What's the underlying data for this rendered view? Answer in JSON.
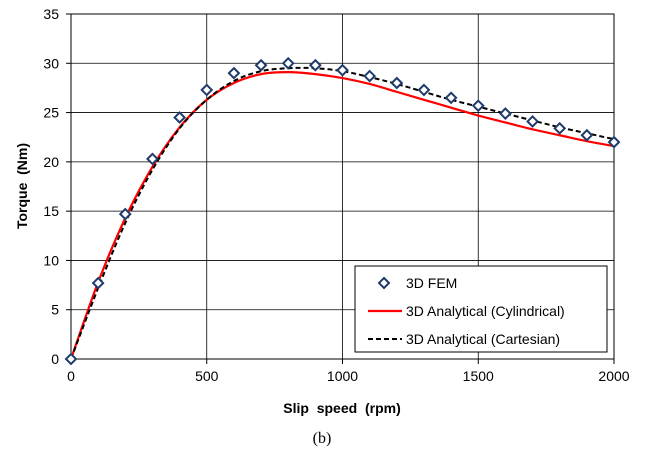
{
  "chart_data": {
    "type": "line",
    "xlabel": "Slip  speed  (rpm)",
    "ylabel": "Torque  (Nm)",
    "caption": "(b)",
    "xlim": [
      0,
      2000
    ],
    "ylim": [
      0,
      35
    ],
    "x_ticks": [
      0,
      500,
      1000,
      1500,
      2000
    ],
    "y_ticks": [
      0,
      5,
      10,
      15,
      20,
      25,
      30,
      35
    ],
    "x_tick_labels": [
      "0",
      "500",
      "1000",
      "1500",
      "2000"
    ],
    "y_tick_labels": [
      "0",
      "5",
      "10",
      "15",
      "20",
      "25",
      "30",
      "35"
    ],
    "grid": true,
    "legend_position": "bottom-right",
    "series": [
      {
        "name": "3D FEM",
        "style": "marker-diamond",
        "color": "#1F3A6B",
        "x": [
          0,
          100,
          200,
          300,
          400,
          500,
          600,
          700,
          800,
          900,
          1000,
          1100,
          1200,
          1300,
          1400,
          1500,
          1600,
          1700,
          1800,
          1900,
          2000
        ],
        "y": [
          0,
          7.7,
          14.7,
          20.3,
          24.5,
          27.3,
          29.0,
          29.8,
          30.0,
          29.8,
          29.3,
          28.7,
          28.0,
          27.3,
          26.5,
          25.7,
          24.9,
          24.1,
          23.4,
          22.7,
          22.0
        ]
      },
      {
        "name": "3D Analytical (Cylindrical)",
        "style": "solid",
        "color": "#FF0000",
        "x": [
          0,
          100,
          200,
          300,
          400,
          500,
          600,
          700,
          800,
          900,
          1000,
          1100,
          1200,
          1300,
          1400,
          1500,
          1600,
          1700,
          1800,
          1900,
          2000
        ],
        "y": [
          0,
          7.8,
          14.3,
          19.5,
          23.5,
          26.3,
          28.0,
          28.9,
          29.1,
          28.9,
          28.5,
          27.9,
          27.1,
          26.3,
          25.5,
          24.7,
          24.0,
          23.3,
          22.7,
          22.1,
          21.6
        ]
      },
      {
        "name": "3D Analytical (Cartesian)",
        "style": "dashed",
        "color": "#000000",
        "x": [
          0,
          100,
          200,
          300,
          400,
          500,
          600,
          700,
          800,
          900,
          1000,
          1100,
          1200,
          1300,
          1400,
          1500,
          1600,
          1700,
          1800,
          1900,
          2000
        ],
        "y": [
          0,
          7.2,
          13.8,
          19.2,
          23.4,
          26.3,
          28.2,
          29.2,
          29.5,
          29.5,
          29.2,
          28.6,
          27.9,
          27.1,
          26.3,
          25.6,
          24.9,
          24.2,
          23.5,
          22.9,
          22.3
        ]
      }
    ]
  }
}
